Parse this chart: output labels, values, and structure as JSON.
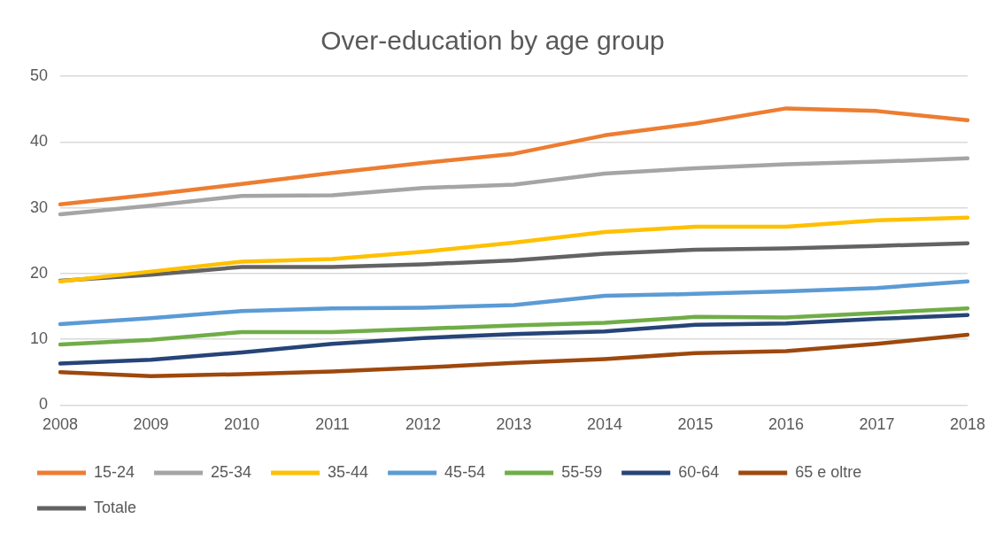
{
  "chart_data": {
    "type": "line",
    "title": "Over-education by age group",
    "categories": [
      "2008",
      "2009",
      "2010",
      "2011",
      "2012",
      "2013",
      "2014",
      "2015",
      "2016",
      "2017",
      "2018"
    ],
    "series": [
      {
        "name": "15-24",
        "color": "#ed7d31",
        "values": [
          30.5,
          32,
          33.6,
          35.3,
          36.8,
          38.2,
          41,
          42.8,
          45.1,
          44.7,
          43.3
        ]
      },
      {
        "name": "25-34",
        "color": "#a5a5a5",
        "values": [
          29,
          30.3,
          31.8,
          31.9,
          33,
          33.5,
          35.2,
          36,
          36.6,
          37,
          37.5
        ]
      },
      {
        "name": "35-44",
        "color": "#ffc000",
        "values": [
          18.8,
          20.3,
          21.8,
          22.2,
          23.3,
          24.7,
          26.3,
          27.1,
          27.1,
          28.1,
          28.5
        ]
      },
      {
        "name": "45-54",
        "color": "#5b9bd5",
        "values": [
          12.3,
          13.2,
          14.3,
          14.7,
          14.8,
          15.2,
          16.6,
          16.9,
          17.3,
          17.8,
          18.8
        ]
      },
      {
        "name": "55-59",
        "color": "#70ad47",
        "values": [
          9.2,
          9.9,
          11.1,
          11.1,
          11.6,
          12.1,
          12.5,
          13.4,
          13.3,
          14,
          14.7
        ]
      },
      {
        "name": "60-64",
        "color": "#264478",
        "values": [
          6.3,
          6.9,
          8,
          9.3,
          10.2,
          10.8,
          11.2,
          12.2,
          12.4,
          13.1,
          13.7
        ]
      },
      {
        "name": "65 e oltre",
        "color": "#9e480e",
        "values": [
          5,
          4.4,
          4.7,
          5.1,
          5.7,
          6.4,
          7,
          7.9,
          8.2,
          9.3,
          10.7
        ]
      },
      {
        "name": "Totale",
        "color": "#636363",
        "values": [
          18.9,
          19.8,
          21,
          21,
          21.4,
          22,
          23,
          23.6,
          23.8,
          24.2,
          24.6
        ]
      }
    ],
    "ylim": [
      0,
      50
    ],
    "yticks": [
      0,
      10,
      20,
      30,
      40,
      50
    ],
    "grid": "y",
    "legend": "bottom",
    "marker": "none",
    "line_style": "solid"
  }
}
